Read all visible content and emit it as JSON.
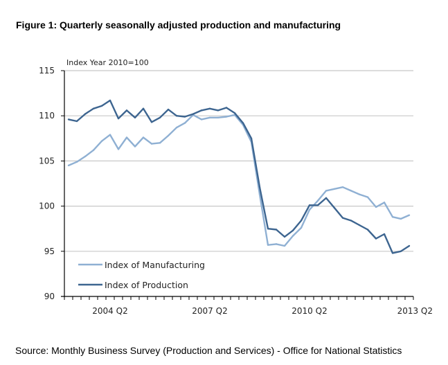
{
  "figure": {
    "title": "Figure 1: Quarterly seasonally adjusted production and manufacturing",
    "source": "Source: Monthly Business Survey (Production and Services) - Office for National Statistics"
  },
  "chart_data": {
    "type": "line",
    "title": "Figure 1: Quarterly seasonally adjusted production and manufacturing",
    "ylabel": "Index Year 2010=100",
    "xlabel": "",
    "ylim": [
      90,
      115
    ],
    "yticks": [
      90,
      95,
      100,
      105,
      110,
      115
    ],
    "grid": true,
    "legend_position": "bottom-left",
    "x": [
      "2003 Q1",
      "2003 Q2",
      "2003 Q3",
      "2003 Q4",
      "2004 Q1",
      "2004 Q2",
      "2004 Q3",
      "2004 Q4",
      "2005 Q1",
      "2005 Q2",
      "2005 Q3",
      "2005 Q4",
      "2006 Q1",
      "2006 Q2",
      "2006 Q3",
      "2006 Q4",
      "2007 Q1",
      "2007 Q2",
      "2007 Q3",
      "2007 Q4",
      "2008 Q1",
      "2008 Q2",
      "2008 Q3",
      "2008 Q4",
      "2009 Q1",
      "2009 Q2",
      "2009 Q3",
      "2009 Q4",
      "2010 Q1",
      "2010 Q2",
      "2010 Q3",
      "2010 Q4",
      "2011 Q1",
      "2011 Q2",
      "2011 Q3",
      "2011 Q4",
      "2012 Q1",
      "2012 Q2",
      "2012 Q3",
      "2012 Q4",
      "2013 Q1",
      "2013 Q2"
    ],
    "xtick_labels": [
      "2004 Q2",
      "2007 Q2",
      "2010 Q2",
      "2013 Q2"
    ],
    "series": [
      {
        "name": "Index of Manufacturing",
        "color": "#8fb0d3",
        "values": [
          104.5,
          104.9,
          105.5,
          106.2,
          107.2,
          107.9,
          106.3,
          107.6,
          106.6,
          107.6,
          106.9,
          107.0,
          107.8,
          108.7,
          109.2,
          110.1,
          109.6,
          109.8,
          109.8,
          109.9,
          110.1,
          109.0,
          107.1,
          101.3,
          95.7,
          95.8,
          95.6,
          96.7,
          97.6,
          99.6,
          100.6,
          101.7,
          101.9,
          102.1,
          101.7,
          101.3,
          101.0,
          99.9,
          100.4,
          98.8,
          98.6,
          99.0
        ]
      },
      {
        "name": "Index of Production",
        "color": "#3d6590",
        "values": [
          109.6,
          109.4,
          110.2,
          110.8,
          111.1,
          111.7,
          109.7,
          110.6,
          109.8,
          110.8,
          109.3,
          109.8,
          110.7,
          110.0,
          109.9,
          110.2,
          110.6,
          110.8,
          110.6,
          110.9,
          110.3,
          109.2,
          107.5,
          102.1,
          97.5,
          97.4,
          96.6,
          97.3,
          98.4,
          100.1,
          100.1,
          100.9,
          99.8,
          98.7,
          98.4,
          97.9,
          97.4,
          96.4,
          96.9,
          94.8,
          95.0,
          95.6
        ]
      }
    ]
  }
}
